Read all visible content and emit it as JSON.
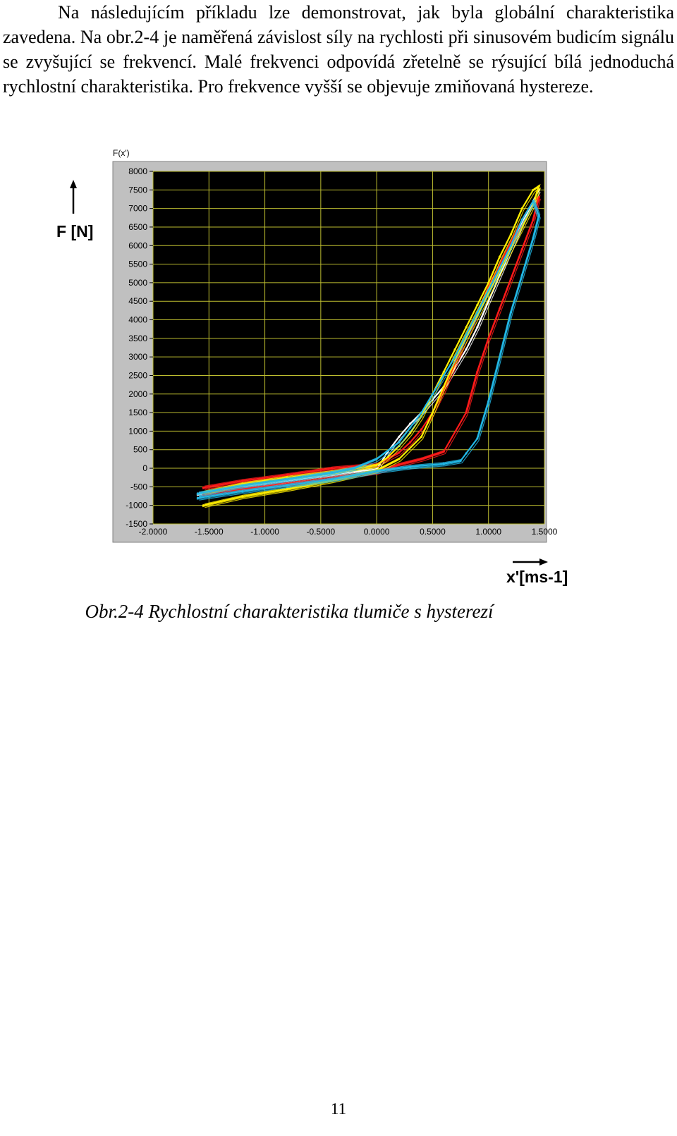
{
  "document": {
    "paragraph": "Na následujícím příkladu lze demonstrovat, jak byla globální charakteristika zavedena. Na obr.2-4 je naměřená závislost síly na rychlosti při sinusovém budicím signálu se zvyšující se frekvencí. Malé frekvenci odpovídá zřetelně se rýsující bílá jednoduchá rychlostní charakteristika. Pro frekvence vyšší se objevuje zmiňovaná hystereze.",
    "caption": "Obr.2-4  Rychlostní charakteristika tlumiče s hysterezí",
    "page_number": "11"
  },
  "figure": {
    "y_axis_label": "F [N]",
    "x_axis_label": "x'[ms-1]",
    "plot_label": "F(x')"
  },
  "chart_data": {
    "type": "line",
    "title": "",
    "plot_label": "F(x')",
    "xlabel": "x'[ms-1]",
    "ylabel": "F [N]",
    "xlim": [
      -2.0,
      1.5
    ],
    "ylim": [
      -1500,
      8000
    ],
    "x_ticks": [
      "-2.0000",
      "-1.5000",
      "-1.0000",
      "-0.5000",
      "0.0000",
      "0.5000",
      "1.0000",
      "1.5000"
    ],
    "y_ticks": [
      "8000",
      "7500",
      "7000",
      "6500",
      "6000",
      "5500",
      "5000",
      "4500",
      "4000",
      "3500",
      "3000",
      "2500",
      "2000",
      "1500",
      "1000",
      "500",
      "0",
      "-500",
      "-1000",
      "-1500"
    ],
    "grid": true,
    "background": "#000000",
    "series": [
      {
        "color": "#ffffff",
        "x": [
          -1.6,
          -1.4,
          -1.2,
          -1.0,
          -0.8,
          -0.6,
          -0.4,
          -0.2,
          0.0,
          0.1,
          0.2,
          0.3,
          0.4,
          0.5,
          0.6,
          0.7,
          0.8,
          0.9,
          1.0,
          1.1,
          1.2,
          1.3,
          1.4,
          1.45
        ],
        "y": [
          -700,
          -580,
          -490,
          -410,
          -330,
          -250,
          -170,
          -90,
          -30,
          450,
          850,
          1200,
          1500,
          1850,
          2200,
          2700,
          3200,
          3800,
          4500,
          5200,
          5900,
          6600,
          7200,
          7500
        ]
      },
      {
        "color": "#ff1a1a",
        "x": [
          -1.55,
          -1.2,
          -0.8,
          -0.4,
          0.0,
          0.2,
          0.4,
          0.6,
          0.8,
          0.9,
          1.0,
          1.1,
          1.2,
          1.3,
          1.4,
          1.45,
          1.4,
          1.3,
          1.2,
          1.1,
          1.0,
          0.9,
          0.8,
          0.7,
          0.6,
          0.5,
          0.4,
          0.3,
          0.2,
          0.0,
          -0.4,
          -0.8,
          -1.2,
          -1.55
        ],
        "y": [
          -700,
          -560,
          -420,
          -270,
          -100,
          100,
          250,
          450,
          1500,
          2600,
          3500,
          4300,
          5100,
          5900,
          6700,
          7300,
          7200,
          6700,
          6100,
          5500,
          4900,
          4200,
          3500,
          2800,
          2100,
          1500,
          1050,
          700,
          420,
          100,
          0,
          -180,
          -340,
          -520
        ]
      },
      {
        "color": "#ffee00",
        "x": [
          -1.55,
          -1.2,
          -0.8,
          -0.4,
          0.0,
          0.2,
          0.4,
          0.5,
          0.6,
          0.7,
          0.8,
          0.9,
          1.0,
          1.1,
          1.2,
          1.3,
          1.4,
          1.45,
          1.4,
          1.3,
          1.2,
          1.1,
          1.0,
          0.9,
          0.8,
          0.7,
          0.6,
          0.5,
          0.4,
          0.3,
          0.2,
          0.1,
          0.0,
          -0.4,
          -0.8,
          -1.2,
          -1.55
        ],
        "y": [
          -1000,
          -760,
          -560,
          -330,
          -60,
          250,
          850,
          1500,
          2200,
          2900,
          3500,
          4100,
          4700,
          5300,
          5900,
          6500,
          7100,
          7600,
          7500,
          7000,
          6300,
          5700,
          5000,
          4400,
          3800,
          3200,
          2600,
          2000,
          1400,
          950,
          600,
          300,
          80,
          -100,
          -250,
          -420,
          -650
        ]
      },
      {
        "color": "#22b8e6",
        "x": [
          -1.6,
          -1.2,
          -0.8,
          -0.4,
          0.0,
          0.3,
          0.6,
          0.75,
          0.8,
          0.9,
          1.0,
          1.1,
          1.2,
          1.3,
          1.4,
          1.45,
          1.4,
          1.3,
          1.2,
          1.1,
          1.0,
          0.9,
          0.8,
          0.7,
          0.6,
          0.5,
          0.4,
          0.3,
          0.2,
          0.0,
          -0.2,
          -0.4,
          -0.8,
          -1.2,
          -1.6
        ],
        "y": [
          -800,
          -620,
          -460,
          -300,
          -80,
          40,
          120,
          200,
          400,
          800,
          1800,
          3000,
          4200,
          5200,
          6200,
          6800,
          7200,
          6700,
          6000,
          5400,
          4800,
          4200,
          3600,
          3000,
          2500,
          2000,
          1500,
          1100,
          700,
          250,
          0,
          -120,
          -300,
          -470,
          -680
        ]
      }
    ]
  }
}
